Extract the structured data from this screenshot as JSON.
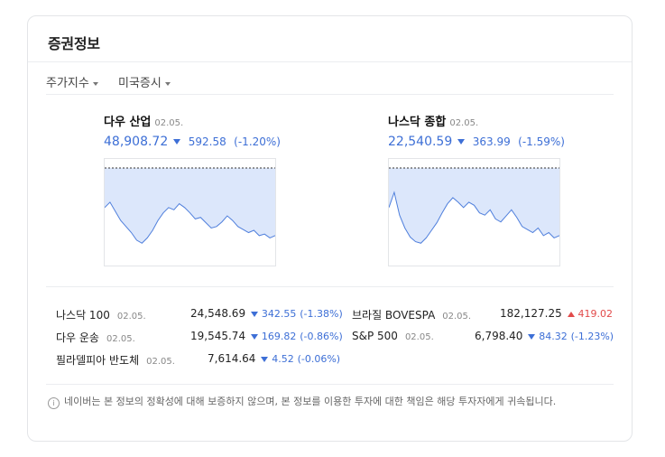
{
  "card": {
    "title": "증권정보",
    "tabs": [
      "주가지수",
      "미국증시"
    ]
  },
  "main_indices": [
    {
      "name": "다우 산업",
      "date": "02.05.",
      "value": "48,908.72",
      "change": "592.58",
      "percent": "(-1.20%)",
      "direction": "down"
    },
    {
      "name": "나스닥 종합",
      "date": "02.05.",
      "value": "22,540.59",
      "change": "363.99",
      "percent": "(-1.59%)",
      "direction": "down"
    }
  ],
  "sub_indices": [
    {
      "name": "나스닥 100",
      "date": "02.05.",
      "value": "24,548.69",
      "change": "342.55",
      "percent": "(-1.38%)",
      "direction": "down"
    },
    {
      "name": "브라질 BOVESPA",
      "date": "02.05.",
      "value": "182,127.25",
      "change": "419.02",
      "percent": "",
      "direction": "up"
    },
    {
      "name": "다우 운송",
      "date": "02.05.",
      "value": "19,545.74",
      "change": "169.82",
      "percent": "(-0.86%)",
      "direction": "down"
    },
    {
      "name": "S&P 500",
      "date": "02.05.",
      "value": "6,798.40",
      "change": "84.32",
      "percent": "(-1.23%)",
      "direction": "down"
    },
    {
      "name": "필라델피아 반도체",
      "date": "02.05.",
      "value": "7,614.64",
      "change": "4.52",
      "percent": "(-0.06%)",
      "direction": "down"
    }
  ],
  "notice": "네이버는 본 정보의 정확성에 대해 보증하지 않으며, 본 정보를 이용한 투자에 대한 책임은 해당 투자자에게 귀속됩니다.",
  "colors": {
    "down": "#3d6fd6",
    "up": "#e24b4b",
    "fill": "#dce7fb",
    "line": "#4f7fdc"
  },
  "chart_data": [
    {
      "type": "area",
      "series": [
        {
          "values": [
            0.55,
            0.62,
            0.5,
            0.38,
            0.3,
            0.22,
            0.12,
            0.08,
            0.15,
            0.25,
            0.38,
            0.48,
            0.55,
            0.52,
            0.6,
            0.55,
            0.48,
            0.4,
            0.42,
            0.35,
            0.28,
            0.3,
            0.36,
            0.44,
            0.38,
            0.3,
            0.26,
            0.22,
            0.25,
            0.18,
            0.2,
            0.15,
            0.18
          ]
        }
      ]
    },
    {
      "type": "area",
      "series": [
        {
          "values": [
            0.55,
            0.75,
            0.45,
            0.28,
            0.16,
            0.1,
            0.08,
            0.15,
            0.25,
            0.35,
            0.48,
            0.6,
            0.68,
            0.62,
            0.55,
            0.62,
            0.58,
            0.48,
            0.45,
            0.52,
            0.4,
            0.36,
            0.44,
            0.52,
            0.42,
            0.3,
            0.26,
            0.22,
            0.28,
            0.18,
            0.22,
            0.15,
            0.18
          ]
        }
      ]
    }
  ]
}
